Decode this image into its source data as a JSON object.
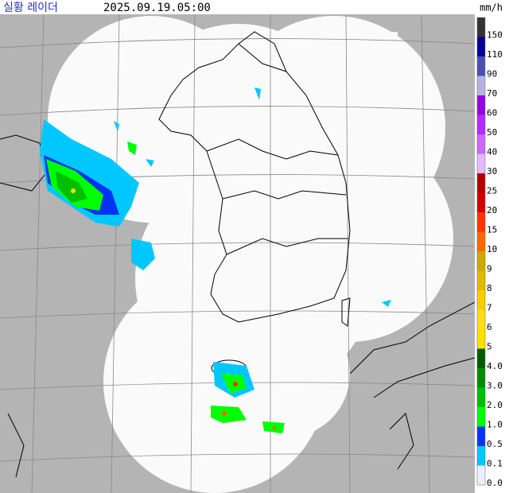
{
  "header": {
    "title": "실황 레이더",
    "timestamp": "2025.09.19.05:00",
    "unit": "mm/h"
  },
  "legend": [
    {
      "label": "150",
      "color": "#333333"
    },
    {
      "label": "110",
      "color": "#000390"
    },
    {
      "label": "90",
      "color": "#4c4eb1"
    },
    {
      "label": "70",
      "color": "#b3b4de"
    },
    {
      "label": "60",
      "color": "#9300e4"
    },
    {
      "label": "50",
      "color": "#b329ff"
    },
    {
      "label": "40",
      "color": "#c969ff"
    },
    {
      "label": "30",
      "color": "#e0b9ff"
    },
    {
      "label": "25",
      "color": "#b40000"
    },
    {
      "label": "20",
      "color": "#d20000"
    },
    {
      "label": "15",
      "color": "#ff3200"
    },
    {
      "label": "10",
      "color": "#ff6600"
    },
    {
      "label": "9",
      "color": "#ccaa00"
    },
    {
      "label": "8",
      "color": "#e0b900"
    },
    {
      "label": "7",
      "color": "#f9cd00"
    },
    {
      "label": "6",
      "color": "#ffdc1f"
    },
    {
      "label": "5",
      "color": "#ffe100"
    },
    {
      "label": "4.0",
      "color": "#005a00"
    },
    {
      "label": "3.0",
      "color": "#008c00"
    },
    {
      "label": "2.0",
      "color": "#00be00"
    },
    {
      "label": "1.0",
      "color": "#00ff00"
    },
    {
      "label": "0.5",
      "color": "#0033f5"
    },
    {
      "label": "0.1",
      "color": "#00c8ff"
    },
    {
      "label": "0.0",
      "color": "#eeeeff"
    }
  ]
}
